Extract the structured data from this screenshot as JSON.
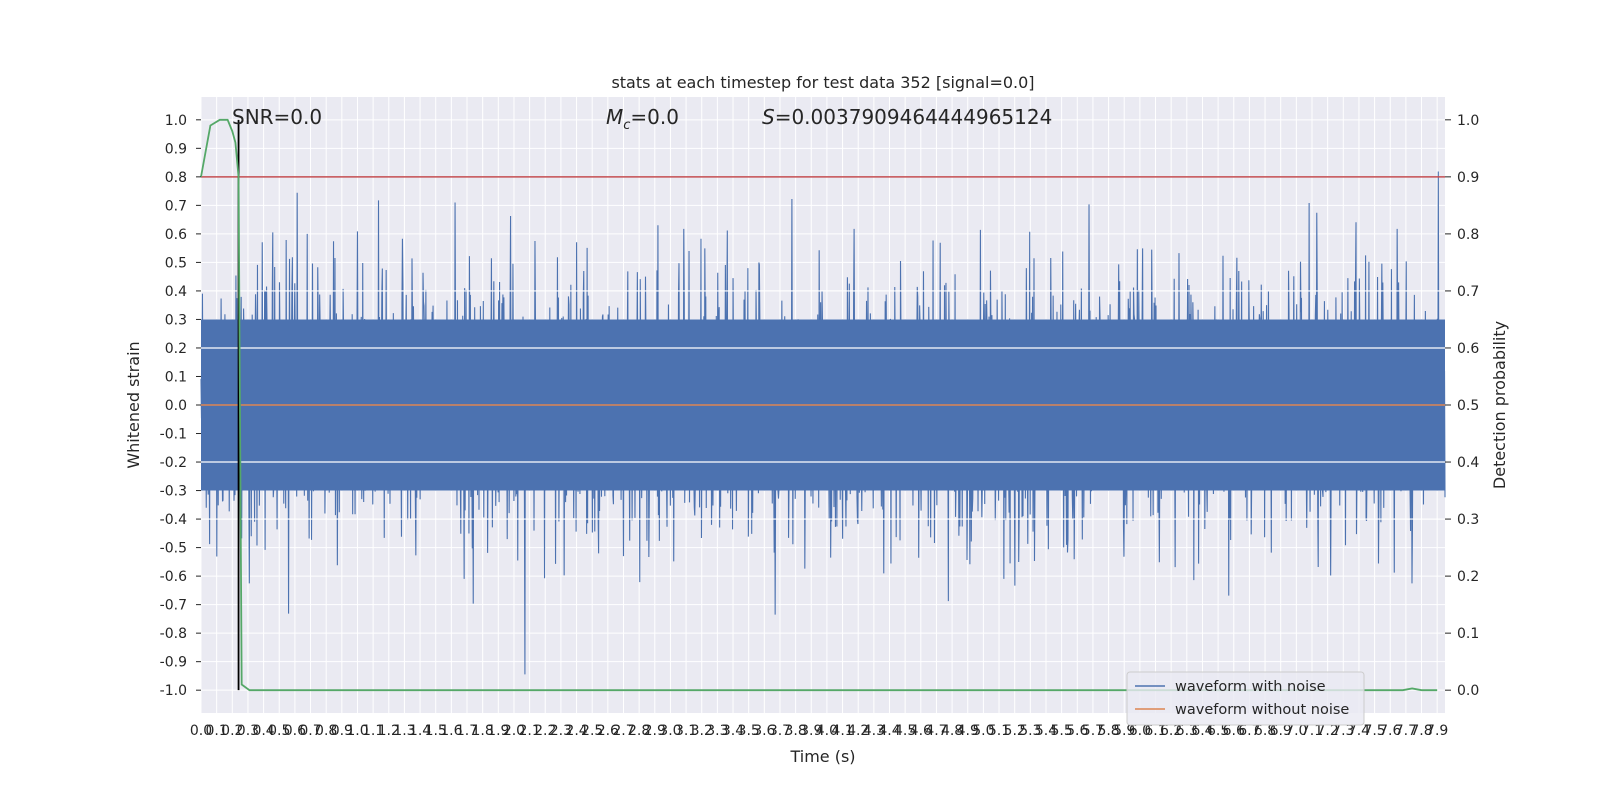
{
  "chart_data": {
    "type": "line",
    "title": "stats at each timestep for test data 352 [signal=0.0]",
    "xlabel": "Time (s)",
    "ylabel": "Whitened strain",
    "y2label": "Detection probability",
    "xlim": [
      0,
      7.95
    ],
    "ylim": [
      -1.08,
      1.08
    ],
    "y2lim": [
      -0.04,
      1.04
    ],
    "x_ticks": [
      0.0,
      0.1,
      0.2,
      0.3,
      0.4,
      0.5,
      0.6,
      0.7,
      0.8,
      0.9,
      1.0,
      1.1,
      1.2,
      1.3,
      1.4,
      1.5,
      1.6,
      1.7,
      1.8,
      1.9,
      2.0,
      2.1,
      2.2,
      2.3,
      2.4,
      2.5,
      2.6,
      2.7,
      2.8,
      2.9,
      3.0,
      3.1,
      3.2,
      3.3,
      3.4,
      3.5,
      3.6,
      3.7,
      3.8,
      3.9,
      4.0,
      4.1,
      4.2,
      4.3,
      4.4,
      4.5,
      4.6,
      4.7,
      4.8,
      4.9,
      5.0,
      5.1,
      5.2,
      5.3,
      5.4,
      5.5,
      5.6,
      5.7,
      5.8,
      5.9,
      6.0,
      6.1,
      6.2,
      6.3,
      6.4,
      6.5,
      6.6,
      6.7,
      6.8,
      6.9,
      7.0,
      7.1,
      7.2,
      7.3,
      7.4,
      7.5,
      7.6,
      7.7,
      7.8,
      7.9
    ],
    "y_ticks": [
      -1.0,
      -0.9,
      -0.8,
      -0.7,
      -0.6,
      -0.5,
      -0.4,
      -0.3,
      -0.2,
      -0.1,
      0.0,
      0.1,
      0.2,
      0.3,
      0.4,
      0.5,
      0.6,
      0.7,
      0.8,
      0.9,
      1.0
    ],
    "y2_ticks": [
      0.0,
      0.1,
      0.2,
      0.3,
      0.4,
      0.5,
      0.6,
      0.7,
      0.8,
      0.9,
      1.0
    ],
    "grid": true,
    "series": [
      {
        "name": "waveform with noise",
        "axis": "left",
        "color": "#4c72b0",
        "description": "dense whitened noise, approximately ±0.3 to ±1.0"
      },
      {
        "name": "waveform without noise",
        "axis": "left",
        "color": "#dd8452",
        "values": "flat at 0.0"
      },
      {
        "axis": "right",
        "color": "#55a868",
        "x": [
          0.0,
          0.06,
          0.12,
          0.17,
          0.2,
          0.22,
          0.24,
          0.26,
          0.31,
          7.6,
          7.68,
          7.74,
          7.8,
          7.85,
          7.9
        ],
        "y": [
          0.9,
          0.99,
          1.0,
          1.0,
          0.98,
          0.96,
          0.9,
          0.01,
          0.0,
          0.0,
          0.0,
          0.003,
          0.0,
          0.0,
          0.0
        ]
      },
      {
        "axis": "right",
        "color": "#c44e52",
        "constant_y": 0.9
      }
    ],
    "vertical_marker": {
      "x": 0.24,
      "color": "#000000",
      "y_range": [
        -1.0,
        1.0
      ]
    },
    "annotations": {
      "snr": "SNR=0.0",
      "mc_symbol": "M",
      "mc_subscript": "c",
      "mc_value": "=0.0",
      "s_symbol": "S",
      "s_value": "=0.0037909464444965124"
    },
    "legend": {
      "placement": "lower-right",
      "entries": [
        "waveform with noise",
        "waveform without noise"
      ]
    }
  },
  "colors": {
    "plot_background": "#eaeaf2",
    "grid": "#ffffff",
    "noise": "#4c72b0",
    "clean": "#dd8452",
    "probability": "#55a868",
    "threshold": "#c44e52"
  }
}
